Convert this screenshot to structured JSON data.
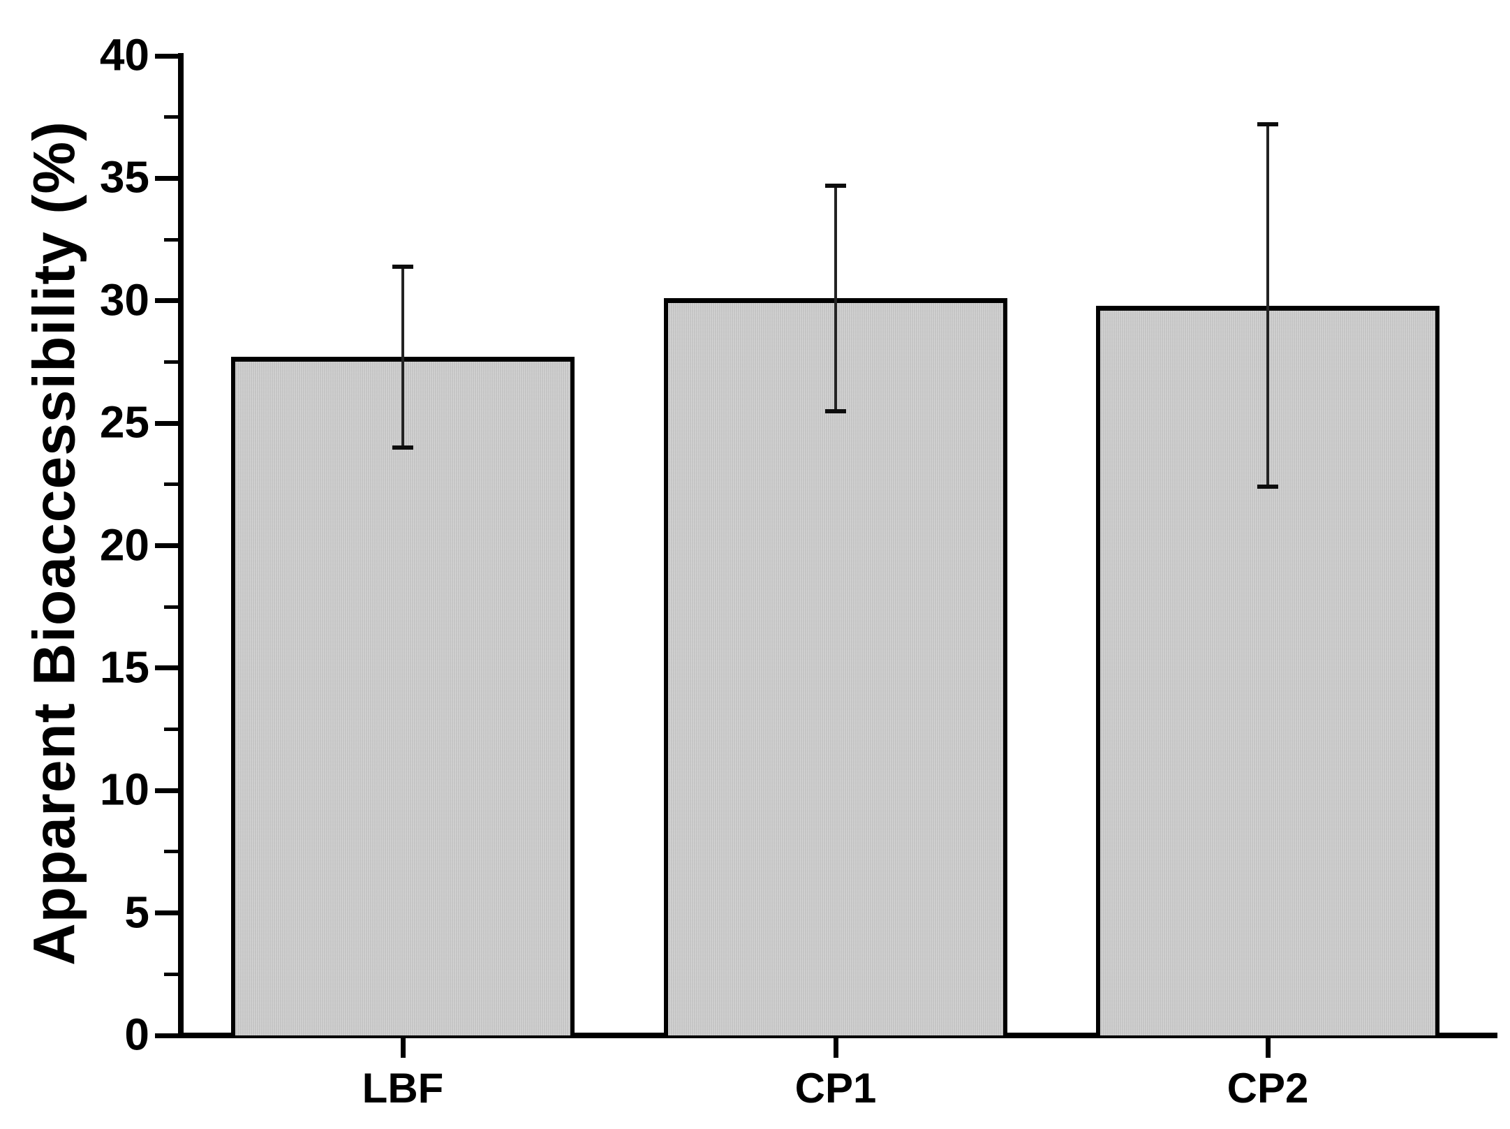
{
  "figure": {
    "background_color": "#ffffff",
    "ink_color": "#000000",
    "bar_fill_color": "#c9c9c9",
    "bar_edge_color": "#000000",
    "error_bar_color": "#232323"
  },
  "chart_data": {
    "type": "bar",
    "title": "",
    "categories": [
      "LBF",
      "CP1",
      "CP2"
    ],
    "values": [
      27.7,
      30.1,
      29.8
    ],
    "error_bars": [
      3.7,
      4.6,
      7.4
    ],
    "error_bar_upper": [
      31.4,
      34.7,
      37.2
    ],
    "error_bar_lower": [
      24.0,
      25.5,
      22.4
    ],
    "xlabel": "",
    "ylabel": "Apparent Bioaccessibility (%)",
    "ylim": [
      0,
      40
    ],
    "y_major_step": 5,
    "y_minor_step": 2.5,
    "y_tick_labels": [
      "0",
      "5",
      "10",
      "15",
      "20",
      "25",
      "30",
      "35",
      "40"
    ],
    "grid": "off",
    "legend": "none",
    "bar_fill": "#c9c9c9",
    "bar_edge": "#000000"
  }
}
